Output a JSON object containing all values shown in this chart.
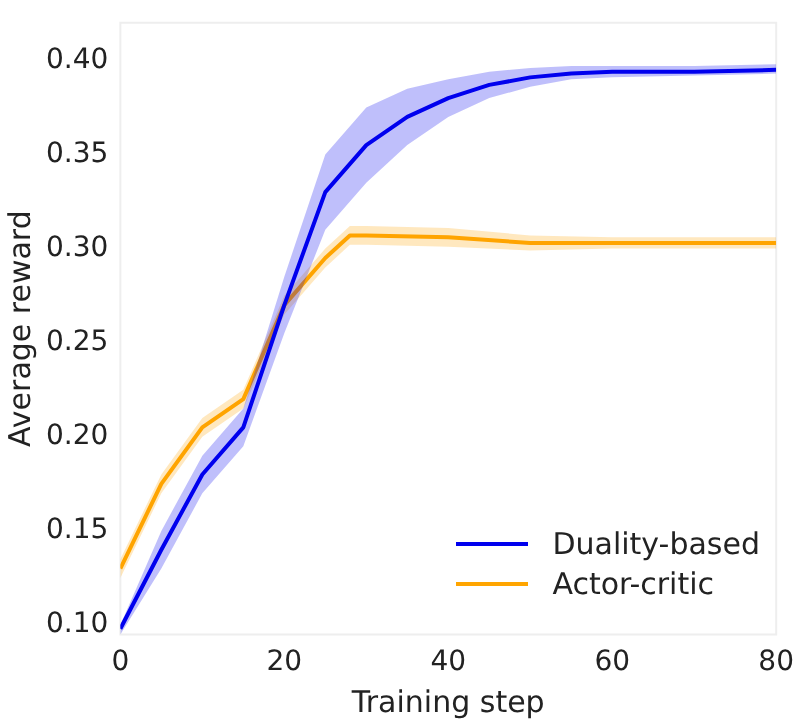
{
  "chart_data": {
    "type": "line",
    "xlabel": "Training step",
    "ylabel": "Average reward",
    "xlim": [
      0,
      80
    ],
    "xticks": [
      0,
      20,
      40,
      60,
      80
    ],
    "ylim": [
      0.095,
      0.42
    ],
    "yticks": [
      {
        "value": 0.1,
        "label": "0.10"
      },
      {
        "value": 0.15,
        "label": "0.15"
      },
      {
        "value": 0.2,
        "label": "0.20"
      },
      {
        "value": 0.25,
        "label": "0.25"
      },
      {
        "value": 0.3,
        "label": "0.30"
      },
      {
        "value": 0.35,
        "label": "0.35"
      },
      {
        "value": 0.4,
        "label": "0.40"
      }
    ],
    "grid": false,
    "legend": "bottom right",
    "marker": "none",
    "line_style": "solid",
    "series": [
      {
        "name": "Duality-based",
        "color": "#0000ee",
        "x": [
          0,
          5,
          10,
          15,
          20,
          25,
          30,
          35,
          40,
          45,
          50,
          55,
          60,
          70,
          80
        ],
        "values": [
          0.098,
          0.14,
          0.18,
          0.205,
          0.27,
          0.33,
          0.355,
          0.37,
          0.38,
          0.387,
          0.391,
          0.393,
          0.394,
          0.394,
          0.395
        ],
        "lower": [
          0.095,
          0.13,
          0.17,
          0.195,
          0.255,
          0.31,
          0.335,
          0.355,
          0.37,
          0.38,
          0.386,
          0.39,
          0.391,
          0.392,
          0.393
        ],
        "upper": [
          0.1,
          0.15,
          0.19,
          0.215,
          0.285,
          0.35,
          0.375,
          0.385,
          0.39,
          0.394,
          0.396,
          0.397,
          0.397,
          0.397,
          0.398
        ]
      },
      {
        "name": "Actor-critic",
        "color": "#ffa500",
        "x": [
          0,
          5,
          10,
          15,
          20,
          25,
          28,
          30,
          40,
          50,
          60,
          70,
          80
        ],
        "values": [
          0.13,
          0.175,
          0.205,
          0.22,
          0.27,
          0.295,
          0.307,
          0.307,
          0.306,
          0.303,
          0.303,
          0.303,
          0.303
        ],
        "lower": [
          0.125,
          0.17,
          0.2,
          0.215,
          0.265,
          0.29,
          0.302,
          0.302,
          0.301,
          0.299,
          0.3,
          0.3,
          0.3
        ],
        "upper": [
          0.135,
          0.18,
          0.21,
          0.225,
          0.275,
          0.3,
          0.312,
          0.312,
          0.311,
          0.307,
          0.306,
          0.306,
          0.306
        ]
      }
    ]
  }
}
